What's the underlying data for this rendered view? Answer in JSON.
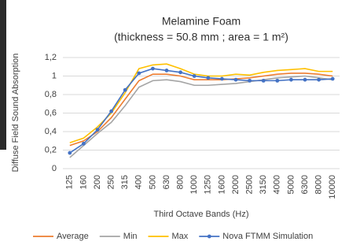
{
  "chart_data": {
    "type": "line",
    "title": "Melamine Foam",
    "subtitle": "(thickness = 50.8 mm ; area = 1 m²)",
    "y_label": "Diffuse Field Sound Absorption",
    "x_label": "Third Octave Bands (Hz)",
    "categories": [
      "125",
      "160",
      "200",
      "250",
      "315",
      "400",
      "500",
      "630",
      "800",
      "1000",
      "1250",
      "1600",
      "2000",
      "2500",
      "3150",
      "4000",
      "5000",
      "6300",
      "8000",
      "10000"
    ],
    "series": [
      {
        "name": "Average",
        "color": "#ed7d31",
        "values": [
          0.25,
          0.3,
          0.4,
          0.55,
          0.75,
          0.95,
          1.02,
          1.02,
          1.0,
          0.96,
          0.96,
          0.96,
          0.97,
          0.98,
          1.0,
          1.02,
          1.03,
          1.03,
          1.02,
          1.0
        ]
      },
      {
        "name": "Min",
        "color": "#a5a5a5",
        "values": [
          0.12,
          0.25,
          0.38,
          0.5,
          0.68,
          0.88,
          0.95,
          0.96,
          0.94,
          0.9,
          0.9,
          0.91,
          0.92,
          0.94,
          0.96,
          0.98,
          0.99,
          1.0,
          0.98,
          0.96
        ]
      },
      {
        "name": "Max",
        "color": "#ffc000",
        "values": [
          0.28,
          0.33,
          0.45,
          0.6,
          0.82,
          1.08,
          1.12,
          1.13,
          1.08,
          1.02,
          1.0,
          1.0,
          1.02,
          1.01,
          1.04,
          1.06,
          1.07,
          1.08,
          1.05,
          1.05
        ]
      },
      {
        "name": "Nova FTMM Simulation",
        "color": "#4472c4",
        "markers": true,
        "values": [
          0.17,
          0.27,
          0.42,
          0.62,
          0.85,
          1.03,
          1.08,
          1.06,
          1.04,
          1.0,
          0.98,
          0.97,
          0.96,
          0.95,
          0.95,
          0.95,
          0.96,
          0.96,
          0.96,
          0.97
        ]
      }
    ],
    "ylim": [
      0,
      1.2
    ],
    "yticks": [
      0,
      {
        "value": 0.2,
        "label": "0,2"
      },
      {
        "value": 0.4,
        "label": "0,4"
      },
      {
        "value": 0.6,
        "label": "0,6"
      },
      {
        "value": 0.8,
        "label": "0,8"
      },
      1,
      {
        "value": 1.2,
        "label": "1,2"
      }
    ],
    "grid": true,
    "legend": "bottom"
  }
}
